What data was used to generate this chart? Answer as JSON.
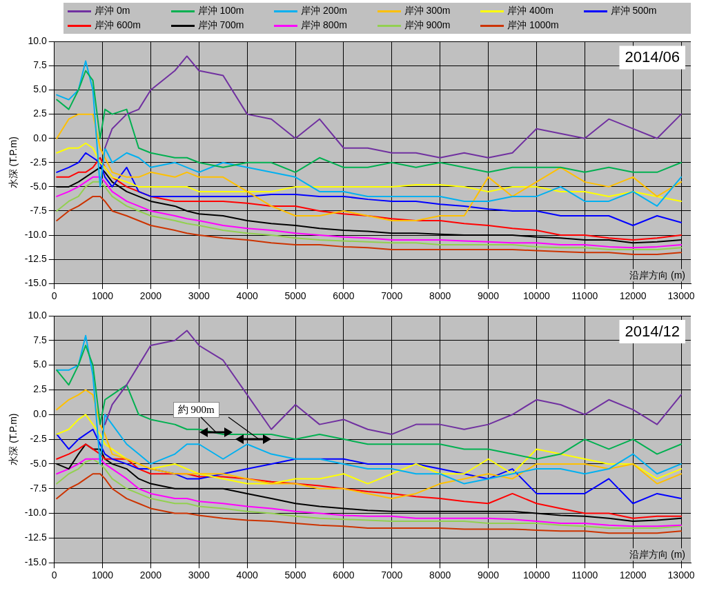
{
  "chart_data": [
    {
      "type": "line",
      "title": "2014/06",
      "xlabel": "沿岸方向 (m)",
      "ylabel": "水深 (T.P.m)",
      "legend": "top",
      "grid": true,
      "xlim": [
        0,
        13200
      ],
      "xticks": [
        0,
        1000,
        2000,
        3000,
        4000,
        5000,
        6000,
        7000,
        8000,
        9000,
        10000,
        11000,
        12000,
        13000
      ],
      "ylim": [
        -15,
        10
      ],
      "yticks": [
        {
          "value": 10,
          "label": "10.0"
        },
        {
          "value": 7.5,
          "label": "7.5"
        },
        {
          "value": 5,
          "label": "5.0"
        },
        {
          "value": 2.5,
          "label": "2.5"
        },
        {
          "value": 0,
          "label": "0.0"
        },
        {
          "value": -2.5,
          "label": "-2.5"
        },
        {
          "value": -5,
          "label": "-5.0"
        },
        {
          "value": -7.5,
          "label": "-7.5"
        },
        {
          "value": -10,
          "label": "-10.0"
        },
        {
          "value": -12.5,
          "label": "-12.5"
        },
        {
          "value": -15,
          "label": "-15.0"
        }
      ],
      "x": [
        50,
        300,
        500,
        650,
        800,
        950,
        1050,
        1200,
        1500,
        1750,
        2000,
        2500,
        2750,
        3000,
        3500,
        4000,
        4500,
        5000,
        5500,
        6000,
        6500,
        7000,
        7500,
        8000,
        8500,
        9000,
        9500,
        10000,
        10500,
        11000,
        11500,
        12000,
        12500,
        13000
      ],
      "series": [
        {
          "name": "岸沖 0m",
          "color": "#7030a0",
          "values": [
            null,
            null,
            null,
            null,
            null,
            null,
            -1,
            1,
            2.5,
            3,
            5,
            7,
            8.5,
            7,
            6.5,
            2.5,
            2,
            0,
            2,
            -1,
            -1,
            -1.5,
            -1.5,
            -2,
            -1.5,
            -2,
            -1.5,
            1,
            0.5,
            0,
            2,
            1,
            0,
            2.5
          ]
        },
        {
          "name": "岸沖 100m",
          "color": "#00b050",
          "values": [
            4,
            3,
            5,
            7,
            6,
            0,
            3,
            2.5,
            3,
            -1,
            -1.5,
            -2,
            -2,
            -2.5,
            -3,
            -2.5,
            -2.5,
            -3.5,
            -2,
            -3,
            -3,
            -2.5,
            -3,
            -2.5,
            -3,
            -3.5,
            -3,
            -3,
            -3,
            -3.5,
            -3,
            -3.5,
            -3.5,
            -2.5
          ]
        },
        {
          "name": "岸沖 200m",
          "color": "#00b0f0",
          "values": [
            4.5,
            4,
            5,
            8,
            5,
            -5,
            -1,
            -2.5,
            -1.5,
            -2,
            -3,
            -2.5,
            -3,
            -3.5,
            -2.5,
            -3,
            -3.5,
            -4,
            -5.5,
            -5.5,
            -6,
            -6,
            -6,
            -6,
            -6.5,
            -6.5,
            -6,
            -6,
            -5,
            -6.5,
            -6.5,
            -5.5,
            -7,
            -4
          ]
        },
        {
          "name": "岸沖 300m",
          "color": "#ffc000",
          "values": [
            0,
            2,
            2.5,
            2.5,
            2.5,
            -1,
            -2,
            -3.5,
            -4,
            -4,
            -3.5,
            -4,
            -3.5,
            -4,
            -4,
            -5.5,
            -7,
            -8,
            -8,
            -7.5,
            -8,
            -8.5,
            -8.5,
            -8,
            -8,
            -4,
            -6,
            -4.5,
            -3,
            -4.5,
            -5,
            -4,
            -6,
            -4.5
          ]
        },
        {
          "name": "岸沖 400m",
          "color": "#ffff00",
          "values": [
            -1.5,
            -1,
            -1,
            -0.5,
            -1,
            -2.5,
            -3,
            -4,
            -4.5,
            -5,
            -5,
            -5,
            -5,
            -5.5,
            -5.5,
            -5.5,
            -5.5,
            -5,
            -5,
            -5,
            -5,
            -5,
            -4.8,
            -4.8,
            -5,
            -5.5,
            -5,
            -5,
            -5.5,
            -5.5,
            -6,
            -5.5,
            -6,
            -6.5
          ]
        },
        {
          "name": "岸沖 500m",
          "color": "#0000ff",
          "values": [
            -3.5,
            -3,
            -2.5,
            -1.5,
            -2,
            -2.5,
            -4,
            -5,
            -3,
            -5.5,
            -6,
            -6,
            -6,
            -6,
            -6,
            -6,
            -5.8,
            -5.8,
            -6,
            -6,
            -6.3,
            -6.5,
            -6.5,
            -6.8,
            -7,
            -7.3,
            -7.5,
            -7.5,
            -8,
            -8,
            -8,
            -9,
            -8,
            -8.7
          ]
        },
        {
          "name": "岸沖 600m",
          "color": "#ff0000",
          "values": [
            -4,
            -4,
            -3.5,
            -3.5,
            -3,
            -2,
            -3,
            -4,
            -5,
            -5.5,
            -6,
            -6.5,
            -6.5,
            -6.5,
            -6.5,
            -6.7,
            -7,
            -7,
            -7.5,
            -7.8,
            -8,
            -8.3,
            -8.5,
            -8.5,
            -8.8,
            -9,
            -9.3,
            -9.5,
            -10,
            -10,
            -10.3,
            -10.5,
            -10.3,
            -10
          ]
        },
        {
          "name": "岸沖 700m",
          "color": "#000000",
          "values": [
            -5,
            -5,
            -4.5,
            -4,
            -3.5,
            -3,
            -3.5,
            -4.5,
            -5.5,
            -6,
            -6.5,
            -7,
            -7.5,
            -7.8,
            -8,
            -8.5,
            -8.8,
            -9,
            -9.3,
            -9.5,
            -9.6,
            -9.8,
            -9.8,
            -9.9,
            -10,
            -10,
            -10,
            -10.2,
            -10.3,
            -10.5,
            -10.5,
            -10.8,
            -10.7,
            -10.5
          ]
        },
        {
          "name": "岸沖 800m",
          "color": "#ff00ff",
          "values": [
            -6,
            -5.5,
            -5,
            -4.5,
            -4,
            -4,
            -4.5,
            -5.5,
            -6.5,
            -7,
            -7.5,
            -8,
            -8.3,
            -8.5,
            -9,
            -9.3,
            -9.5,
            -9.8,
            -10,
            -10.2,
            -10.3,
            -10.5,
            -10.5,
            -10.5,
            -10.6,
            -10.7,
            -10.8,
            -10.8,
            -11,
            -11,
            -11.2,
            -11.3,
            -11.2,
            -11
          ]
        },
        {
          "name": "岸沖 900m",
          "color": "#92d050",
          "values": [
            -7.5,
            -6.5,
            -6,
            -5,
            -4.5,
            -4.5,
            -5,
            -6,
            -7,
            -7.5,
            -8,
            -8.5,
            -8.8,
            -9,
            -9.5,
            -9.8,
            -10,
            -10.3,
            -10.5,
            -10.6,
            -10.7,
            -10.8,
            -10.8,
            -11,
            -11,
            -11,
            -11,
            -11.2,
            -11.3,
            -11.3,
            -11.5,
            -11.5,
            -11.5,
            -11.3
          ]
        },
        {
          "name": "岸沖 1000m",
          "color": "#cc3300",
          "values": [
            -8.5,
            -7.5,
            -7,
            -6.5,
            -6,
            -6,
            -6.5,
            -7.5,
            -8,
            -8.5,
            -9,
            -9.5,
            -9.8,
            -10,
            -10.3,
            -10.5,
            -10.8,
            -11,
            -11,
            -11.2,
            -11.3,
            -11.5,
            -11.5,
            -11.5,
            -11.5,
            -11.5,
            -11.5,
            -11.6,
            -11.7,
            -11.8,
            -11.8,
            -12,
            -12,
            -11.8
          ]
        }
      ]
    },
    {
      "type": "line",
      "title": "2014/12",
      "xlabel": "沿岸方向 (m)",
      "ylabel": "水深 (T.P.m)",
      "grid": true,
      "annotations": [
        {
          "text": "約 900m",
          "x": 3350,
          "y": -1.8
        }
      ],
      "xlim": [
        0,
        13200
      ],
      "xticks": [
        0,
        1000,
        2000,
        3000,
        4000,
        5000,
        6000,
        7000,
        8000,
        9000,
        10000,
        11000,
        12000,
        13000
      ],
      "ylim": [
        -15,
        10
      ],
      "yticks": [
        {
          "value": 10,
          "label": "10.0"
        },
        {
          "value": 7.5,
          "label": "7.5"
        },
        {
          "value": 5,
          "label": "5.0"
        },
        {
          "value": 2.5,
          "label": "2.5"
        },
        {
          "value": 0,
          "label": "0.0"
        },
        {
          "value": -2.5,
          "label": "-2.5"
        },
        {
          "value": -5,
          "label": "-5.0"
        },
        {
          "value": -7.5,
          "label": "-7.5"
        },
        {
          "value": -10,
          "label": "-10.0"
        },
        {
          "value": -12.5,
          "label": "-12.5"
        },
        {
          "value": -15,
          "label": "-15.0"
        }
      ],
      "x": [
        50,
        300,
        500,
        650,
        800,
        950,
        1050,
        1200,
        1500,
        1750,
        2000,
        2500,
        2750,
        3000,
        3500,
        4000,
        4500,
        5000,
        5500,
        6000,
        6500,
        7000,
        7500,
        8000,
        8500,
        9000,
        9500,
        10000,
        10500,
        11000,
        11500,
        12000,
        12500,
        13000
      ],
      "series": [
        {
          "color": "#7030a0",
          "values": [
            null,
            null,
            null,
            null,
            null,
            null,
            -1,
            1,
            3,
            5,
            7,
            7.5,
            8.5,
            7,
            5.5,
            2,
            -1.5,
            1,
            -1,
            -0.5,
            -1.5,
            -2,
            -1,
            -1,
            -1.5,
            -1,
            0,
            1.5,
            1,
            0,
            1.5,
            0.5,
            -1,
            2
          ]
        },
        {
          "color": "#00b050",
          "values": [
            4.5,
            3,
            5,
            7,
            5,
            -1,
            1.5,
            2,
            3,
            0,
            -0.5,
            -1,
            -1.5,
            -1.5,
            -2,
            -2,
            -2,
            -2.5,
            -2,
            -2.5,
            -3,
            -3,
            -3,
            -3,
            -3.5,
            -3.5,
            -4,
            -4.5,
            -4,
            -2.5,
            -3.5,
            -2.5,
            -4,
            -3
          ]
        },
        {
          "color": "#00b0f0",
          "values": [
            4.5,
            4.5,
            5,
            8,
            4,
            -5,
            0,
            -1,
            -3,
            -4,
            -5,
            -4,
            -3,
            -3,
            -4.5,
            -3,
            -4,
            -4.5,
            -4.5,
            -5,
            -5.5,
            -5.5,
            -6,
            -6,
            -7,
            -6.5,
            -6,
            -5.5,
            -5.5,
            -6,
            -5.5,
            -4,
            -6,
            -5
          ]
        },
        {
          "color": "#ffc000",
          "values": [
            0.5,
            1.5,
            2,
            2.5,
            2,
            -1,
            -2,
            -4,
            -4.5,
            -5,
            -5.5,
            -6,
            -6,
            -6,
            -6,
            -6.5,
            -7,
            -7,
            -7.5,
            -7.5,
            -8,
            -8.5,
            -8,
            -7,
            -6.5,
            -6,
            -6.5,
            -5,
            -5,
            -5,
            -5.5,
            -5,
            -7,
            -6
          ]
        },
        {
          "color": "#ffff00",
          "values": [
            -2,
            -1.5,
            -0.5,
            0,
            -1,
            -2,
            -3,
            -3.5,
            -4.5,
            -5,
            -5.5,
            -5,
            -5.5,
            -6,
            -6.5,
            -7,
            -7,
            -6.5,
            -6.5,
            -6,
            -7,
            -6,
            -5,
            -6,
            -6,
            -4.5,
            -6,
            -3.5,
            -4,
            -4.5,
            -5,
            -5,
            -6.5,
            -5.5
          ]
        },
        {
          "color": "#0000ff",
          "values": [
            -2,
            -3.5,
            -2.5,
            -2,
            -1.5,
            -3,
            -4,
            -4.5,
            -5,
            -5.5,
            -5.5,
            -6,
            -6.5,
            -6.5,
            -6,
            -5.5,
            -5,
            -4.5,
            -4.5,
            -4.5,
            -5,
            -5,
            -5,
            -5.5,
            -6,
            -6.5,
            -5.5,
            -8,
            -8,
            -8,
            -6.5,
            -9,
            -8,
            -8.5
          ]
        },
        {
          "color": "#ff0000",
          "values": [
            -4.5,
            -4,
            -3.5,
            -3,
            -3.5,
            -4,
            -4.5,
            -4.5,
            -4.5,
            -5.5,
            -6,
            -6,
            -6,
            -6.3,
            -6.3,
            -6.5,
            -6.8,
            -7,
            -7.2,
            -7.5,
            -7.8,
            -8,
            -8.3,
            -8.5,
            -8.8,
            -9,
            -8,
            -9,
            -9.5,
            -10,
            -10,
            -10.5,
            -10.3,
            -10.3
          ]
        },
        {
          "color": "#000000",
          "values": [
            -5,
            -5.5,
            -4,
            -3,
            -3.5,
            -3.5,
            -4.5,
            -5,
            -5.5,
            -6.5,
            -7,
            -7.5,
            -7.5,
            -7.5,
            -7.5,
            -8,
            -8.5,
            -9,
            -9.3,
            -9.5,
            -9.7,
            -9.8,
            -9.8,
            -9.8,
            -9.8,
            -9.8,
            -9.8,
            -10,
            -10.2,
            -10.3,
            -10.5,
            -10.8,
            -10.7,
            -10.5
          ]
        },
        {
          "color": "#ff00ff",
          "values": [
            -6,
            -5.5,
            -5,
            -4.5,
            -4.5,
            -4.5,
            -5,
            -5.5,
            -6.5,
            -7.5,
            -8,
            -8.5,
            -8.5,
            -8.8,
            -9,
            -9.3,
            -9.5,
            -9.8,
            -10,
            -10.2,
            -10.3,
            -10.3,
            -10.5,
            -10.5,
            -10.5,
            -10.5,
            -10.6,
            -10.8,
            -11,
            -11,
            -11.2,
            -11.3,
            -11.3,
            -11.2
          ]
        },
        {
          "color": "#92d050",
          "values": [
            -7,
            -6,
            -5.5,
            -4.8,
            -4.5,
            -5,
            -5.5,
            -6.5,
            -7.5,
            -8,
            -8.5,
            -9,
            -9,
            -9.3,
            -9.5,
            -9.8,
            -10,
            -10.3,
            -10.5,
            -10.6,
            -10.7,
            -10.8,
            -10.8,
            -10.8,
            -10.8,
            -11,
            -11,
            -11,
            -11.2,
            -11.3,
            -11.5,
            -11.5,
            -11.5,
            -11.3
          ]
        },
        {
          "color": "#cc3300",
          "values": [
            -8.5,
            -7.5,
            -7,
            -6.5,
            -6,
            -6,
            -6.5,
            -7.5,
            -8.5,
            -9,
            -9.5,
            -10,
            -10,
            -10.2,
            -10.5,
            -10.7,
            -10.8,
            -11,
            -11.2,
            -11.3,
            -11.5,
            -11.5,
            -11.5,
            -11.5,
            -11.6,
            -11.6,
            -11.6,
            -11.7,
            -11.8,
            -11.8,
            -12,
            -12,
            -12,
            -11.8
          ]
        }
      ]
    }
  ]
}
